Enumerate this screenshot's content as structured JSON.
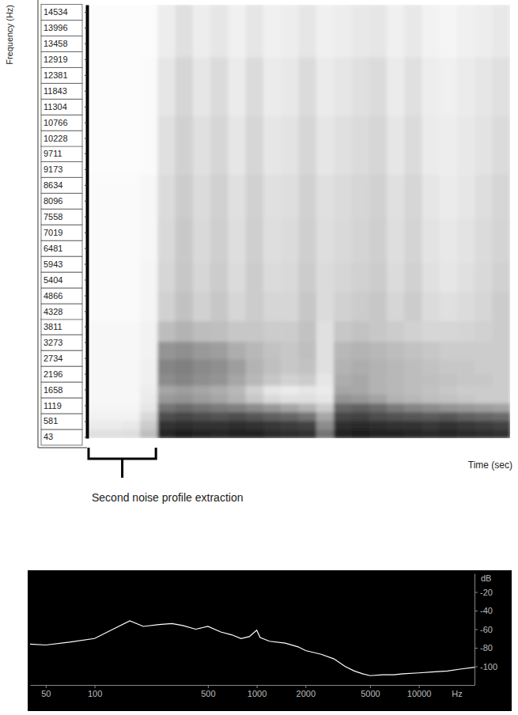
{
  "chart_data": [
    {
      "type": "heatmap",
      "y_label": "Frequency (Hz)",
      "x_label": "Time (sec)",
      "tick_labels": "y",
      "color": "#000000",
      "ylim": [
        0,
        14775
      ],
      "yticks": [
        43,
        581,
        1119,
        1658,
        2196,
        2734,
        3273,
        3811,
        4328,
        4866,
        5404,
        5943,
        6481,
        7019,
        7558,
        8096,
        8634,
        9173,
        9711,
        10228,
        10766,
        11304,
        11843,
        12381,
        12919,
        13458,
        13996,
        14534
      ],
      "y_bins": [
        0,
        300,
        600,
        900,
        1200,
        1500,
        1800,
        2200,
        2700,
        3300,
        4000,
        5000,
        6000,
        7500,
        9000,
        11000,
        13000,
        14800
      ],
      "clim": [
        0,
        1
      ],
      "cells": [
        [
          0.12,
          0.12,
          0.13,
          0.25,
          0.85,
          0.88,
          0.86,
          0.85,
          0.87,
          0.86,
          0.84,
          0.82,
          0.8,
          0.55,
          0.86,
          0.88,
          0.87,
          0.86,
          0.85,
          0.84,
          0.85,
          0.83,
          0.82,
          0.8
        ],
        [
          0.08,
          0.08,
          0.09,
          0.2,
          0.8,
          0.82,
          0.8,
          0.8,
          0.82,
          0.8,
          0.78,
          0.76,
          0.74,
          0.45,
          0.82,
          0.84,
          0.82,
          0.8,
          0.8,
          0.78,
          0.8,
          0.78,
          0.76,
          0.74
        ],
        [
          0.05,
          0.05,
          0.05,
          0.15,
          0.7,
          0.72,
          0.7,
          0.68,
          0.7,
          0.66,
          0.62,
          0.6,
          0.55,
          0.35,
          0.72,
          0.74,
          0.7,
          0.68,
          0.66,
          0.64,
          0.66,
          0.62,
          0.6,
          0.58
        ],
        [
          0.04,
          0.04,
          0.04,
          0.1,
          0.55,
          0.58,
          0.55,
          0.52,
          0.5,
          0.45,
          0.4,
          0.35,
          0.3,
          0.2,
          0.6,
          0.62,
          0.58,
          0.52,
          0.48,
          0.45,
          0.42,
          0.4,
          0.38,
          0.36
        ],
        [
          0.03,
          0.03,
          0.03,
          0.08,
          0.4,
          0.42,
          0.38,
          0.35,
          0.3,
          0.22,
          0.15,
          0.12,
          0.12,
          0.1,
          0.42,
          0.4,
          0.36,
          0.3,
          0.28,
          0.25,
          0.24,
          0.22,
          0.2,
          0.2
        ],
        [
          0.03,
          0.03,
          0.03,
          0.07,
          0.35,
          0.38,
          0.35,
          0.32,
          0.28,
          0.18,
          0.1,
          0.08,
          0.1,
          0.08,
          0.35,
          0.34,
          0.3,
          0.28,
          0.26,
          0.24,
          0.22,
          0.2,
          0.2,
          0.2
        ],
        [
          0.03,
          0.03,
          0.03,
          0.06,
          0.45,
          0.48,
          0.44,
          0.42,
          0.35,
          0.28,
          0.22,
          0.18,
          0.2,
          0.1,
          0.32,
          0.34,
          0.3,
          0.28,
          0.26,
          0.25,
          0.24,
          0.22,
          0.22,
          0.2
        ],
        [
          0.03,
          0.03,
          0.03,
          0.06,
          0.48,
          0.5,
          0.46,
          0.44,
          0.38,
          0.3,
          0.25,
          0.22,
          0.24,
          0.12,
          0.3,
          0.32,
          0.3,
          0.28,
          0.26,
          0.24,
          0.22,
          0.22,
          0.2,
          0.2
        ],
        [
          0.03,
          0.03,
          0.03,
          0.05,
          0.42,
          0.44,
          0.4,
          0.38,
          0.32,
          0.28,
          0.24,
          0.22,
          0.25,
          0.12,
          0.28,
          0.3,
          0.28,
          0.26,
          0.24,
          0.22,
          0.2,
          0.2,
          0.2,
          0.2
        ],
        [
          0.03,
          0.03,
          0.03,
          0.05,
          0.26,
          0.3,
          0.26,
          0.25,
          0.22,
          0.22,
          0.2,
          0.2,
          0.24,
          0.12,
          0.22,
          0.24,
          0.22,
          0.2,
          0.18,
          0.16,
          0.16,
          0.17,
          0.18,
          0.2
        ],
        [
          0.02,
          0.02,
          0.02,
          0.04,
          0.18,
          0.24,
          0.18,
          0.22,
          0.16,
          0.2,
          0.16,
          0.16,
          0.22,
          0.14,
          0.18,
          0.2,
          0.22,
          0.16,
          0.2,
          0.14,
          0.12,
          0.14,
          0.16,
          0.2
        ],
        [
          0.02,
          0.02,
          0.02,
          0.04,
          0.16,
          0.22,
          0.16,
          0.2,
          0.14,
          0.2,
          0.14,
          0.15,
          0.2,
          0.14,
          0.16,
          0.18,
          0.2,
          0.14,
          0.18,
          0.12,
          0.1,
          0.12,
          0.15,
          0.18
        ],
        [
          0.02,
          0.02,
          0.02,
          0.03,
          0.15,
          0.21,
          0.15,
          0.19,
          0.13,
          0.19,
          0.13,
          0.14,
          0.19,
          0.13,
          0.15,
          0.17,
          0.19,
          0.13,
          0.17,
          0.11,
          0.09,
          0.11,
          0.14,
          0.17
        ],
        [
          0.02,
          0.02,
          0.02,
          0.03,
          0.14,
          0.2,
          0.14,
          0.18,
          0.12,
          0.18,
          0.12,
          0.13,
          0.18,
          0.12,
          0.14,
          0.16,
          0.18,
          0.12,
          0.16,
          0.1,
          0.08,
          0.1,
          0.13,
          0.16
        ],
        [
          0.01,
          0.01,
          0.01,
          0.02,
          0.12,
          0.18,
          0.12,
          0.16,
          0.1,
          0.16,
          0.1,
          0.11,
          0.16,
          0.1,
          0.12,
          0.14,
          0.16,
          0.1,
          0.14,
          0.08,
          0.07,
          0.09,
          0.11,
          0.14
        ],
        [
          0.01,
          0.01,
          0.01,
          0.02,
          0.1,
          0.16,
          0.1,
          0.14,
          0.08,
          0.14,
          0.08,
          0.09,
          0.14,
          0.08,
          0.1,
          0.12,
          0.14,
          0.08,
          0.12,
          0.07,
          0.06,
          0.08,
          0.1,
          0.12
        ],
        [
          0.01,
          0.01,
          0.01,
          0.01,
          0.07,
          0.12,
          0.07,
          0.1,
          0.06,
          0.1,
          0.06,
          0.07,
          0.1,
          0.06,
          0.07,
          0.09,
          0.1,
          0.06,
          0.09,
          0.05,
          0.04,
          0.06,
          0.07,
          0.09
        ]
      ],
      "annotations": [
        {
          "text": "Second noise profile extraction",
          "span": [
            0,
            4
          ]
        }
      ]
    },
    {
      "type": "line",
      "x_label": "Hz",
      "y_label": "dB",
      "log": "x",
      "color": "#ffffff",
      "xlim": [
        40,
        22050
      ],
      "xticks": [
        50,
        100,
        500,
        1000,
        2000,
        5000,
        10000
      ],
      "ylim": [
        -120,
        0
      ],
      "yticks": [
        -20,
        -40,
        -60,
        -80,
        -100
      ],
      "x": [
        40,
        50,
        70,
        100,
        130,
        165,
        200,
        250,
        300,
        350,
        420,
        500,
        600,
        700,
        800,
        900,
        1000,
        1050,
        1200,
        1500,
        1800,
        2000,
        2500,
        3000,
        3500,
        4000,
        4500,
        5000,
        6000,
        7000,
        8000,
        10000,
        12000,
        15000,
        18000,
        22050
      ],
      "values": [
        -76,
        -77,
        -74,
        -70,
        -60,
        -51,
        -57,
        -55,
        -54,
        -56,
        -60,
        -57,
        -63,
        -66,
        -70,
        -68,
        -61,
        -69,
        -73,
        -75,
        -79,
        -83,
        -87,
        -92,
        -100,
        -105,
        -108,
        -110,
        -109,
        -109,
        -108,
        -107,
        -106,
        -105,
        -103,
        -101
      ]
    }
  ]
}
